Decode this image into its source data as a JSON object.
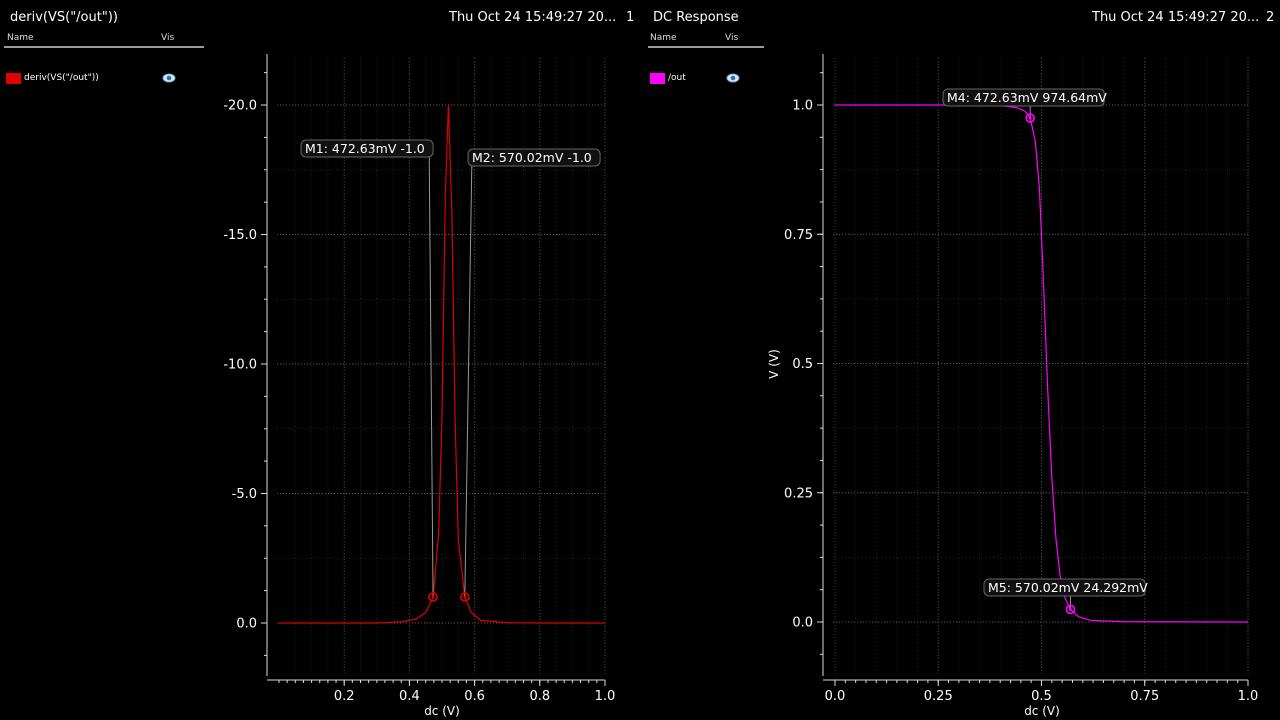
{
  "panels": [
    {
      "title": "deriv(VS(\"/out\"))",
      "timestamp": "Thu Oct 24 15:49:27 20...",
      "index": "1",
      "legend": {
        "name_header": "Name",
        "vis_header": "Vis",
        "items": [
          {
            "label": "deriv(VS(\"/out\"))",
            "color": "#e00000",
            "visibility_icon": "eye-icon"
          }
        ]
      }
    },
    {
      "title": "DC Response",
      "timestamp": "Thu Oct 24 15:49:27 20...",
      "index": "2",
      "legend": {
        "name_header": "Name",
        "vis_header": "Vis",
        "items": [
          {
            "label": "/out",
            "color": "#ff00ff",
            "visibility_icon": "eye-icon"
          }
        ]
      }
    }
  ],
  "chart_data": [
    {
      "type": "line",
      "title": "deriv(VS(\"/out\"))",
      "xlabel": "dc (V)",
      "ylabel": "",
      "xlim": [
        0.0,
        1.0
      ],
      "ylim": [
        -22.0,
        2.0
      ],
      "xticks": [
        0.2,
        0.4,
        0.6,
        0.8,
        1.0
      ],
      "xtick_labels": [
        "0.2",
        "0.4",
        "0.6",
        "0.8",
        "1.0"
      ],
      "yticks": [
        0.0,
        -5.0,
        -10.0,
        -15.0,
        -20.0
      ],
      "ytick_labels": [
        "0.0",
        "-5.0",
        "-10.0",
        "-15.0",
        "-20.0"
      ],
      "grid": true,
      "series": [
        {
          "name": "deriv(VS(\"/out\"))",
          "color": "#e00000",
          "x": [
            0.0,
            0.3,
            0.38,
            0.42,
            0.45,
            0.4726,
            0.49,
            0.5,
            0.51,
            0.5195,
            0.53,
            0.54,
            0.55,
            0.57,
            0.59,
            0.62,
            0.7,
            0.8,
            1.0
          ],
          "y": [
            0.0,
            0.0,
            -0.05,
            -0.15,
            -0.4,
            -1.0,
            -3.5,
            -8.0,
            -16.5,
            -20.0,
            -16.0,
            -8.0,
            -3.2,
            -1.0,
            -0.4,
            -0.1,
            -0.01,
            0.0,
            0.0
          ]
        }
      ],
      "markers": [
        {
          "label": "M1: 472.63mV -1.0",
          "x": 0.4726,
          "y": -1.0
        },
        {
          "label": "M2: 570.02mV -1.0",
          "x": 0.57,
          "y": -1.0
        }
      ]
    },
    {
      "type": "line",
      "title": "DC Response",
      "xlabel": "dc (V)",
      "ylabel": "V (V)",
      "xlim": [
        0.0,
        1.0
      ],
      "ylim": [
        -0.1,
        1.1
      ],
      "xticks": [
        0.0,
        0.25,
        0.5,
        0.75,
        1.0
      ],
      "xtick_labels": [
        "0.0",
        "0.25",
        "0.5",
        "0.75",
        "1.0"
      ],
      "yticks": [
        0.0,
        0.25,
        0.5,
        0.75,
        1.0
      ],
      "ytick_labels": [
        "0.0",
        "0.25",
        "0.5",
        "0.75",
        "1.0"
      ],
      "grid": true,
      "series": [
        {
          "name": "/out",
          "color": "#ff00ff",
          "x": [
            0.0,
            0.3,
            0.4,
            0.44,
            0.46,
            0.4726,
            0.485,
            0.495,
            0.505,
            0.515,
            0.525,
            0.535,
            0.545,
            0.555,
            0.57002,
            0.59,
            0.62,
            0.7,
            1.0
          ],
          "y": [
            1.0,
            1.0,
            0.999,
            0.995,
            0.988,
            0.97464,
            0.93,
            0.84,
            0.65,
            0.45,
            0.28,
            0.16,
            0.09,
            0.05,
            0.024292,
            0.01,
            0.003,
            0.0005,
            0.0
          ]
        }
      ],
      "markers": [
        {
          "label": "M4: 472.63mV 974.64mV",
          "x": 0.4726,
          "y": 0.97464
        },
        {
          "label": "M5: 570.02mV 24.292mV",
          "x": 0.57002,
          "y": 0.024292
        }
      ]
    }
  ]
}
